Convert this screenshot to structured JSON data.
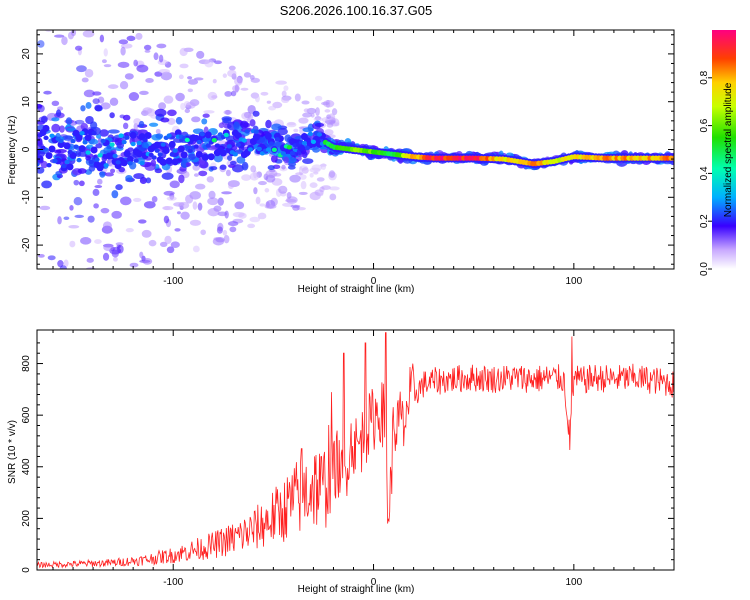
{
  "title": "S206.2026.100.16.37.G05",
  "chart_data": [
    {
      "type": "heatmap",
      "xlabel": "Height of straight line (km)",
      "ylabel": "Frequency (Hz)",
      "xlim": [
        -168,
        150
      ],
      "ylim": [
        -25,
        25
      ],
      "xticks": [
        -100,
        0,
        100
      ],
      "yticks": [
        -20,
        -10,
        0,
        10,
        20
      ],
      "colorbar": {
        "label": "Normalized spectral amplitude",
        "range": [
          0,
          1
        ],
        "ticks": [
          "0.0",
          "0.2",
          "0.4",
          "0.6",
          "0.8"
        ]
      },
      "ridge": [
        {
          "x": -165,
          "freq": 0.5,
          "spread": 10,
          "amp": 0.25
        },
        {
          "x": -140,
          "freq": 0.0,
          "spread": 9,
          "amp": 0.3
        },
        {
          "x": -120,
          "freq": -0.5,
          "spread": 8,
          "amp": 0.35
        },
        {
          "x": -100,
          "freq": 0.5,
          "spread": 7,
          "amp": 0.4
        },
        {
          "x": -80,
          "freq": 1.0,
          "spread": 6,
          "amp": 0.45
        },
        {
          "x": -60,
          "freq": 1.5,
          "spread": 6,
          "amp": 0.45
        },
        {
          "x": -40,
          "freq": 0.5,
          "spread": 5,
          "amp": 0.5
        },
        {
          "x": -28,
          "freq": 2.5,
          "spread": 3,
          "amp": 0.45
        },
        {
          "x": -20,
          "freq": 0.5,
          "spread": 2,
          "amp": 0.55
        },
        {
          "x": -10,
          "freq": 0.0,
          "spread": 1.5,
          "amp": 0.65
        },
        {
          "x": 0,
          "freq": -0.5,
          "spread": 1.2,
          "amp": 0.6
        },
        {
          "x": 10,
          "freq": -1.0,
          "spread": 1.0,
          "amp": 0.5
        },
        {
          "x": 20,
          "freq": -1.5,
          "spread": 1.0,
          "amp": 0.8
        },
        {
          "x": 30,
          "freq": -1.8,
          "spread": 0.8,
          "amp": 0.95
        },
        {
          "x": 50,
          "freq": -1.8,
          "spread": 0.8,
          "amp": 0.95
        },
        {
          "x": 65,
          "freq": -2.0,
          "spread": 0.8,
          "amp": 0.75
        },
        {
          "x": 80,
          "freq": -3.0,
          "spread": 0.8,
          "amp": 0.85
        },
        {
          "x": 90,
          "freq": -2.5,
          "spread": 0.8,
          "amp": 0.7
        },
        {
          "x": 100,
          "freq": -1.5,
          "spread": 0.8,
          "amp": 0.75
        },
        {
          "x": 115,
          "freq": -1.8,
          "spread": 0.8,
          "amp": 0.85
        },
        {
          "x": 135,
          "freq": -1.8,
          "spread": 0.8,
          "amp": 0.8
        },
        {
          "x": 150,
          "freq": -1.8,
          "spread": 0.8,
          "amp": 0.85
        }
      ]
    },
    {
      "type": "line",
      "xlabel": "Height of straight line (km)",
      "ylabel": "SNR (10 * v/v)",
      "xlim": [
        -168,
        150
      ],
      "ylim": [
        0,
        930
      ],
      "xticks": [
        -100,
        0,
        100
      ],
      "yticks": [
        0,
        200,
        400,
        600,
        800
      ],
      "color": "#ff2020",
      "series": [
        {
          "name": "SNR",
          "x": [
            -168,
            -150,
            -130,
            -115,
            -100,
            -90,
            -80,
            -70,
            -60,
            -50,
            -45,
            -40,
            -35,
            -30,
            -25,
            -20,
            -18,
            -15,
            -12,
            -10,
            -8,
            -5,
            -2,
            0,
            3,
            5,
            7,
            8,
            10,
            12,
            15,
            18,
            20,
            25,
            30,
            40,
            50,
            60,
            70,
            80,
            90,
            95,
            98,
            100,
            105,
            110,
            120,
            130,
            140,
            150
          ],
          "values": [
            15,
            18,
            22,
            30,
            45,
            60,
            75,
            95,
            120,
            160,
            180,
            210,
            230,
            260,
            240,
            380,
            420,
            330,
            480,
            500,
            470,
            520,
            560,
            590,
            620,
            600,
            260,
            240,
            560,
            560,
            600,
            660,
            680,
            720,
            730,
            740,
            745,
            740,
            745,
            740,
            745,
            740,
            520,
            740,
            735,
            745,
            740,
            745,
            735,
            720
          ],
          "spikes": [
            {
              "x": -36,
              "value": 470
            },
            {
              "x": -15,
              "value": 840
            },
            {
              "x": -4,
              "value": 880
            },
            {
              "x": 6,
              "value": 920
            },
            {
              "x": 8,
              "value": 225
            },
            {
              "x": 15,
              "value": 480
            },
            {
              "x": 98,
              "value": 465
            },
            {
              "x": 99,
              "value": 905
            }
          ]
        }
      ]
    }
  ]
}
